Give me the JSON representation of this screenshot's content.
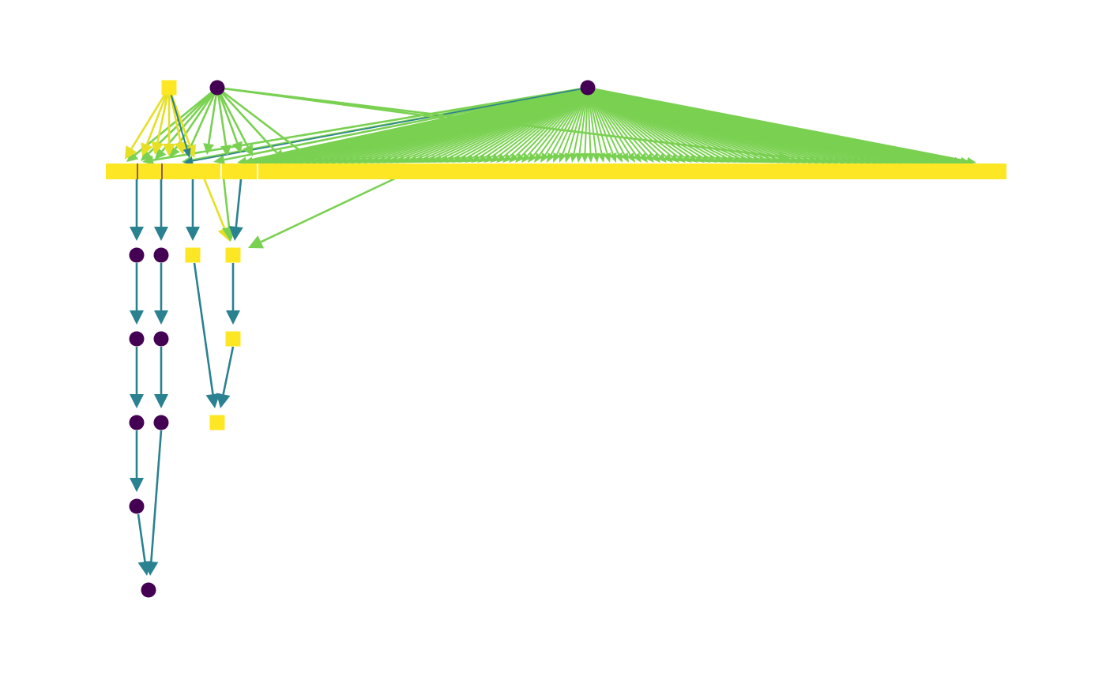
{
  "diagram": {
    "type": "directed-graph",
    "colors": {
      "circle_node": "#440154",
      "square_node": "#fde725",
      "edge_teal": "#2a8190",
      "edge_green": "#7ad151",
      "edge_yellow": "#e6df24",
      "background": "#ffffff"
    },
    "node_kinds": [
      "circle",
      "square"
    ],
    "layers": [
      {
        "layer": 0,
        "nodes": [
          "square",
          "circle",
          "circle"
        ]
      },
      {
        "layer": 1,
        "nodes": [
          "square-row"
        ]
      },
      {
        "layer": 2,
        "nodes": [
          "circle",
          "circle",
          "square",
          "square"
        ]
      },
      {
        "layer": 3,
        "nodes": [
          "circle",
          "circle",
          "square"
        ]
      },
      {
        "layer": 4,
        "nodes": [
          "circle",
          "circle",
          "square"
        ]
      },
      {
        "layer": 5,
        "nodes": [
          "circle"
        ]
      },
      {
        "layer": 6,
        "nodes": [
          "circle"
        ]
      }
    ]
  }
}
